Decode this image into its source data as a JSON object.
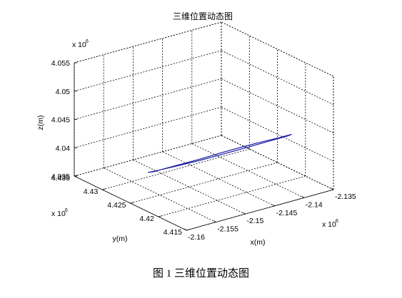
{
  "figure": {
    "caption": "图 1  三维位置动态图"
  },
  "chart_data": {
    "type": "line",
    "title": "三维位置动态图",
    "xlabel": "x(m)",
    "ylabel": "y(m)",
    "zlabel": "z(m)",
    "x_exponent": "x 10",
    "y_exponent": "x 10",
    "z_exponent": "x 10",
    "exponent_power": "6",
    "xlim": [
      -2.16,
      -2.135
    ],
    "ylim": [
      4.415,
      4.435
    ],
    "zlim": [
      4.035,
      4.055
    ],
    "x_ticks": [
      "-2.16",
      "-2.155",
      "-2.15",
      "-2.145",
      "-2.14",
      "-2.135"
    ],
    "y_ticks": [
      "4.415",
      "4.42",
      "4.425",
      "4.43",
      "4.435"
    ],
    "z_ticks": [
      "4.035",
      "4.04",
      "4.045",
      "4.05",
      "4.055"
    ],
    "x_tick_values": [
      -2.16,
      -2.155,
      -2.15,
      -2.145,
      -2.14,
      -2.135
    ],
    "y_tick_values": [
      4.415,
      4.42,
      4.425,
      4.43,
      4.435
    ],
    "z_tick_values": [
      4.035,
      4.04,
      4.045,
      4.05,
      4.055
    ],
    "grid": true,
    "box": true,
    "line_color": "#1a1aa6",
    "series": [
      {
        "comment_free": true,
        "x": [
          -2.1531,
          -2.1529,
          -2.1522,
          -2.1512,
          -2.15,
          -2.1486,
          -2.1472,
          -2.146,
          -2.145,
          -2.1443,
          -2.144,
          -2.1442,
          -2.1448,
          -2.1458,
          -2.1471,
          -2.1485,
          -2.1499,
          -2.1511,
          -2.1521,
          -2.1528,
          -2.1531
        ],
        "y": [
          4.4291,
          4.4286,
          4.4274,
          4.4255,
          4.4232,
          4.4208,
          4.4184,
          4.4163,
          4.4146,
          4.4134,
          4.413,
          4.4134,
          4.4145,
          4.4162,
          4.4183,
          4.4207,
          4.4231,
          4.4254,
          4.4273,
          4.4285,
          4.4291
        ],
        "z": [
          4.0365,
          4.0368,
          4.0376,
          4.0389,
          4.0405,
          4.0423,
          4.0441,
          4.0457,
          4.047,
          4.0479,
          4.0483,
          4.048,
          4.0472,
          4.046,
          4.0445,
          4.0427,
          4.0408,
          4.0391,
          4.0377,
          4.0368,
          4.0365
        ]
      }
    ]
  }
}
